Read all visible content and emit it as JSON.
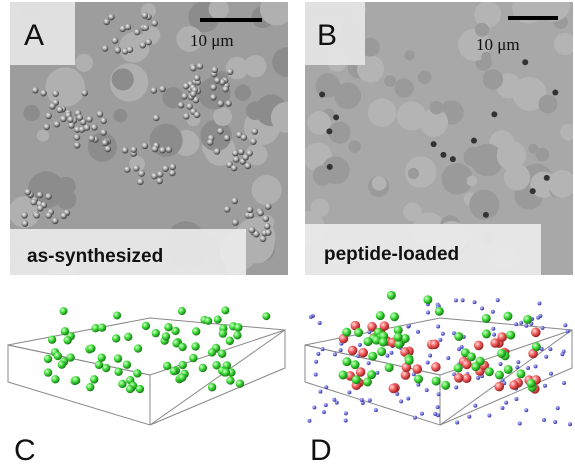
{
  "panels": [
    {
      "letter": "A",
      "scale_bar": "10 μm",
      "caption": "as-synthesized"
    },
    {
      "letter": "B",
      "scale_bar": "10 μm",
      "caption": "peptide-loaded"
    },
    {
      "letter": "C"
    },
    {
      "letter": "D"
    }
  ]
}
